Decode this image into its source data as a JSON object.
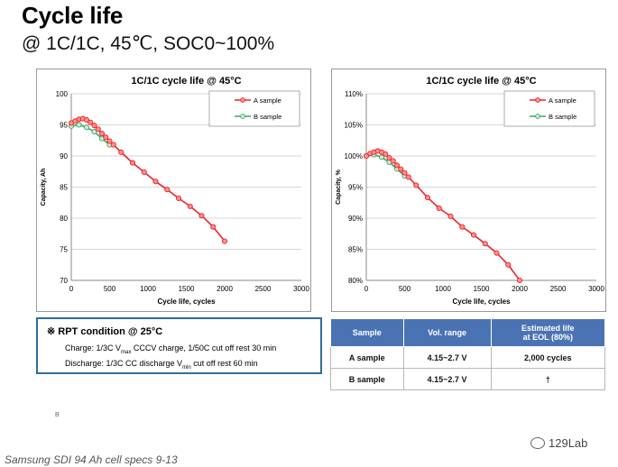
{
  "header": {
    "title": "Cycle life",
    "subtitle": "@ 1C/1C, 45℃, SOC0~100%"
  },
  "chart_data": [
    {
      "type": "line",
      "title": "1C/1C cycle life @ 45°C",
      "xlabel": "Cycle life, cycles",
      "ylabel": "Capacity, Ah",
      "xlim": [
        0,
        3000
      ],
      "ylim": [
        70,
        100
      ],
      "xticks": [
        "0",
        "500",
        "1000",
        "1500",
        "2000",
        "2500",
        "3000"
      ],
      "yticks": [
        "70",
        "75",
        "80",
        "85",
        "90",
        "95",
        "100"
      ],
      "grid": "horizontal",
      "legend": "top-right",
      "series": [
        {
          "name": "A sample",
          "color": "#e8262a",
          "marker_color": "#ff8f8f",
          "x": [
            0,
            50,
            100,
            150,
            200,
            250,
            300,
            350,
            400,
            450,
            500,
            550,
            650,
            800,
            950,
            1100,
            1250,
            1400,
            1550,
            1700,
            1850,
            2000
          ],
          "y": [
            95.3,
            95.6,
            95.9,
            96.0,
            95.8,
            95.4,
            94.9,
            94.3,
            93.6,
            93.0,
            92.4,
            91.8,
            90.6,
            88.9,
            87.4,
            85.9,
            84.6,
            83.2,
            81.9,
            80.4,
            78.6,
            76.3
          ]
        },
        {
          "name": "B sample",
          "color": "#3aa862",
          "marker_color": "#c9eed7",
          "x": [
            0,
            100,
            200,
            300,
            400,
            500
          ],
          "y": [
            94.8,
            95.0,
            94.6,
            93.9,
            92.8,
            91.8
          ]
        }
      ]
    },
    {
      "type": "line",
      "title": "1C/1C cycle life @ 45°C",
      "xlabel": "Cycle life, cycles",
      "ylabel": "Capacity, %",
      "xlim": [
        0,
        3000
      ],
      "ylim": [
        80,
        110
      ],
      "xticks": [
        "0",
        "500",
        "1000",
        "1500",
        "2000",
        "2500",
        "3000"
      ],
      "yticks": [
        "80%",
        "85%",
        "90%",
        "95%",
        "100%",
        "105%",
        "110%"
      ],
      "grid": "horizontal",
      "legend": "top-right",
      "series": [
        {
          "name": "A sample",
          "color": "#e8262a",
          "marker_color": "#ff8f8f",
          "x": [
            0,
            50,
            100,
            150,
            200,
            250,
            300,
            350,
            400,
            450,
            500,
            550,
            650,
            800,
            950,
            1100,
            1250,
            1400,
            1550,
            1700,
            1850,
            2000
          ],
          "y": [
            100.0,
            100.4,
            100.6,
            100.8,
            100.6,
            100.3,
            99.7,
            99.2,
            98.5,
            97.9,
            97.3,
            96.6,
            95.3,
            93.3,
            91.6,
            90.3,
            88.6,
            87.3,
            85.9,
            84.4,
            82.5,
            80.0
          ]
        },
        {
          "name": "B sample",
          "color": "#3aa862",
          "marker_color": "#c9eed7",
          "x": [
            0,
            100,
            200,
            300,
            400,
            500
          ],
          "y": [
            100.0,
            100.2,
            99.8,
            99.0,
            97.9,
            96.8
          ]
        }
      ]
    }
  ],
  "rpt": {
    "heading": "※ RPT condition @ 25°C",
    "charge_pre": "Charge: 1/3C V",
    "charge_sub": "max",
    "charge_post": " CCCV charge, 1/50C cut off rest 30 min",
    "discharge_pre": "Discharge: 1/3C CC discharge V",
    "discharge_sub": "min",
    "discharge_post": " cut off  rest 60 min"
  },
  "spec_table": {
    "headers": [
      "Sample",
      "Vol. range",
      "Estimated life\nat EOL (80%)"
    ],
    "rows": [
      [
        "A sample",
        "4.15~2.7 V",
        "2,000 cycles"
      ],
      [
        "B sample",
        "4.15~2.7 V",
        "†"
      ]
    ]
  },
  "footnote_mark": "B",
  "source_note": "Samsung SDI 94 Ah cell specs 9-13",
  "logo_text": "129Lab"
}
